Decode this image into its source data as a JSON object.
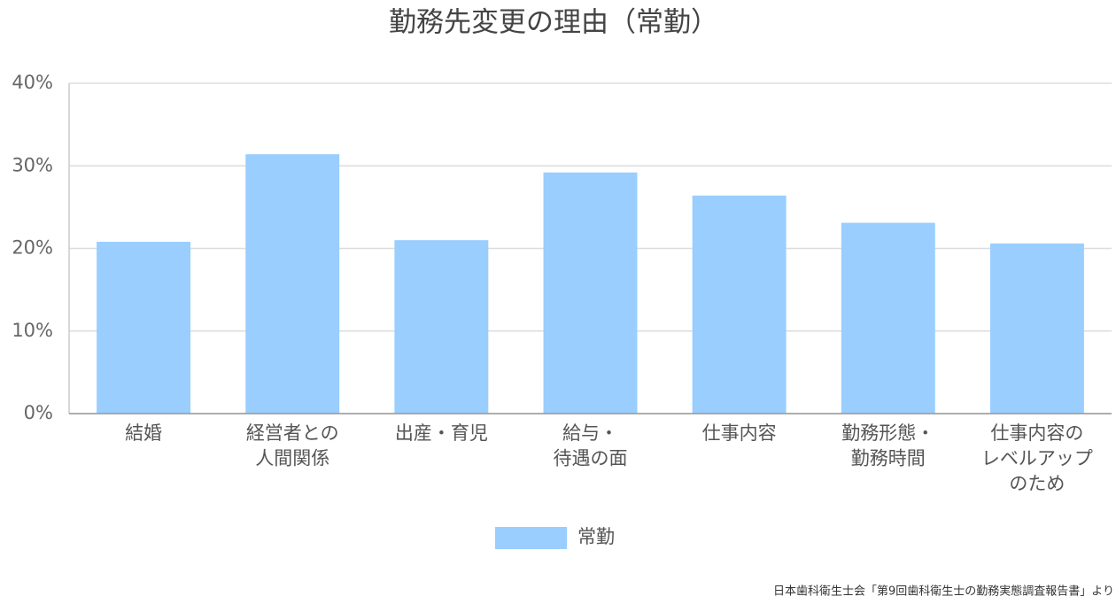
{
  "chart_data": {
    "type": "bar",
    "title": "勤務先変更の理由（常勤）",
    "categories": [
      [
        "結婚"
      ],
      [
        "経営者との",
        "人間関係"
      ],
      [
        "出産・育児"
      ],
      [
        "給与・",
        "待遇の面"
      ],
      [
        "仕事内容"
      ],
      [
        "勤務形態・",
        "勤務時間"
      ],
      [
        "仕事内容の",
        "レベルアップ",
        "のため"
      ]
    ],
    "series": [
      {
        "name": "常勤",
        "color": "#99ceff",
        "values": [
          20.8,
          31.4,
          21.0,
          29.2,
          26.4,
          23.1,
          20.6
        ]
      }
    ],
    "ylim": [
      0,
      40
    ],
    "yticks": [
      {
        "value": 0,
        "label": "0%"
      },
      {
        "value": 10,
        "label": "10%"
      },
      {
        "value": 20,
        "label": "20%"
      },
      {
        "value": 30,
        "label": "30%"
      },
      {
        "value": 40,
        "label": "40%"
      }
    ],
    "grid": true,
    "legend": "bottom",
    "source": "日本歯科衛生士会「第9回歯科衛生士の勤務実態調査報告書」より"
  }
}
